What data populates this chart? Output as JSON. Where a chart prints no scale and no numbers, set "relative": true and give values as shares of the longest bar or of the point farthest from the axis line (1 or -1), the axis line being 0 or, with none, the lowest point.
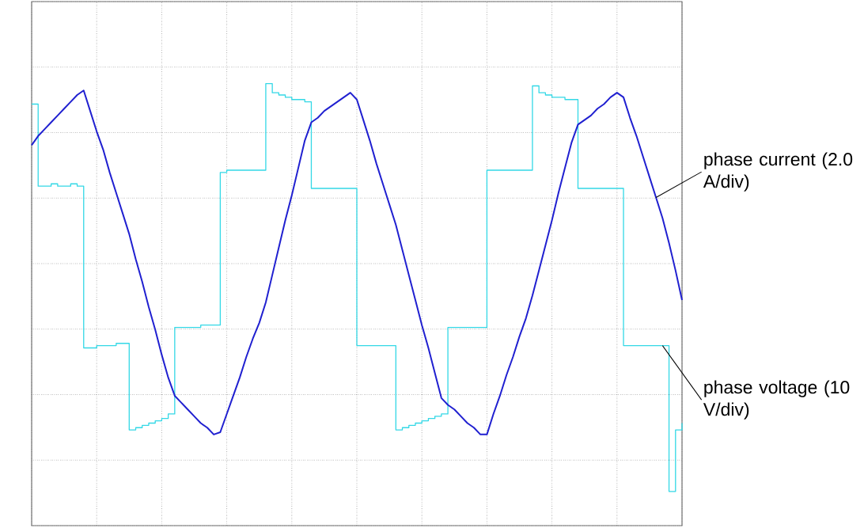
{
  "chart_data": {
    "type": "line",
    "relative": true,
    "grid": true,
    "tick_labels": false,
    "categories": [
      null,
      null,
      null,
      null,
      null,
      null,
      null,
      null,
      null,
      null,
      null,
      null,
      null,
      null,
      null,
      null,
      null,
      null,
      null,
      null,
      null,
      null,
      null,
      null,
      null,
      null,
      null,
      null,
      null,
      null,
      null,
      null,
      null,
      null,
      null,
      null,
      null,
      null,
      null,
      null,
      null,
      null,
      null,
      null,
      null,
      null,
      null,
      null,
      null,
      null,
      null,
      null,
      null,
      null,
      null,
      null,
      null,
      null,
      null,
      null,
      null,
      null,
      null,
      null,
      null,
      null,
      null,
      null,
      null,
      null,
      null,
      null,
      null,
      null,
      null,
      null,
      null,
      null,
      null,
      null,
      null,
      null,
      null,
      null,
      null,
      null,
      null,
      null,
      null,
      null,
      null,
      null,
      null,
      null,
      null,
      null,
      null,
      null,
      null,
      null,
      null
    ],
    "series": [
      {
        "name": "phase voltage (10 V/div)",
        "type": "step",
        "color": "#33d8e6",
        "values": [
          0.7,
          0.34,
          0.34,
          0.35,
          0.34,
          0.34,
          0.35,
          0.34,
          -0.37,
          -0.37,
          -0.36,
          -0.36,
          -0.36,
          -0.35,
          -0.35,
          -0.73,
          -0.72,
          -0.71,
          -0.7,
          -0.69,
          -0.68,
          -0.66,
          -0.28,
          -0.28,
          -0.28,
          -0.28,
          -0.27,
          -0.27,
          -0.27,
          0.4,
          0.41,
          0.41,
          0.41,
          0.41,
          0.41,
          0.41,
          0.79,
          0.75,
          0.74,
          0.73,
          0.72,
          0.72,
          0.71,
          0.33,
          0.33,
          0.33,
          0.33,
          0.33,
          0.33,
          0.33,
          -0.36,
          -0.36,
          -0.36,
          -0.36,
          -0.36,
          -0.36,
          -0.73,
          -0.72,
          -0.71,
          -0.7,
          -0.69,
          -0.68,
          -0.67,
          -0.66,
          -0.28,
          -0.28,
          -0.28,
          -0.28,
          -0.28,
          -0.28,
          0.41,
          0.41,
          0.41,
          0.41,
          0.41,
          0.41,
          0.41,
          0.78,
          0.75,
          0.74,
          0.73,
          0.73,
          0.72,
          0.72,
          0.33,
          0.33,
          0.33,
          0.33,
          0.33,
          0.33,
          0.33,
          -0.36,
          -0.36,
          -0.36,
          -0.36,
          -0.36,
          -0.36,
          -0.36,
          -1.0,
          -0.73,
          -0.7
        ]
      },
      {
        "name": "phase current (2.0 A/div)",
        "color": "#2020d0",
        "values": [
          0.52,
          0.56,
          0.59,
          0.62,
          0.65,
          0.68,
          0.71,
          0.74,
          0.76,
          0.67,
          0.58,
          0.5,
          0.4,
          0.31,
          0.22,
          0.13,
          0.02,
          -0.08,
          -0.19,
          -0.29,
          -0.4,
          -0.5,
          -0.58,
          -0.61,
          -0.64,
          -0.67,
          -0.7,
          -0.72,
          -0.75,
          -0.74,
          -0.66,
          -0.58,
          -0.5,
          -0.41,
          -0.33,
          -0.26,
          -0.17,
          -0.05,
          0.07,
          0.19,
          0.3,
          0.42,
          0.54,
          0.62,
          0.64,
          0.67,
          0.69,
          0.71,
          0.73,
          0.75,
          0.72,
          0.63,
          0.54,
          0.44,
          0.35,
          0.26,
          0.17,
          0.06,
          -0.05,
          -0.16,
          -0.27,
          -0.37,
          -0.48,
          -0.59,
          -0.62,
          -0.64,
          -0.67,
          -0.7,
          -0.72,
          -0.75,
          -0.75,
          -0.66,
          -0.58,
          -0.49,
          -0.41,
          -0.32,
          -0.24,
          -0.14,
          -0.03,
          0.08,
          0.19,
          0.31,
          0.42,
          0.53,
          0.61,
          0.63,
          0.65,
          0.68,
          0.7,
          0.73,
          0.75,
          0.73,
          0.64,
          0.56,
          0.47,
          0.38,
          0.29,
          0.2,
          0.09,
          -0.03,
          -0.16
        ]
      }
    ]
  }
}
